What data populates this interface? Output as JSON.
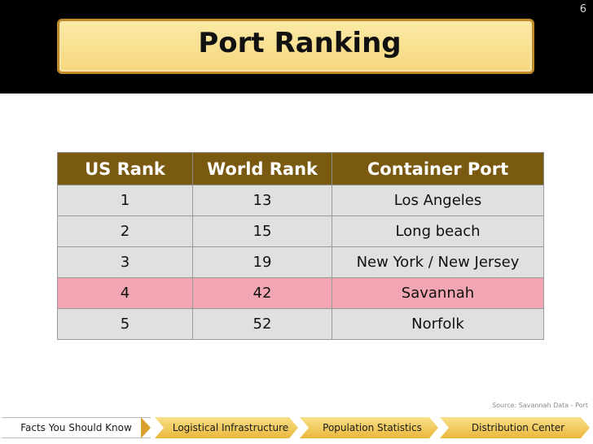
{
  "slide": {
    "number": "6",
    "title": "Port Ranking"
  },
  "table": {
    "headers": [
      "US Rank",
      "World Rank",
      "Container Port"
    ],
    "rows": [
      [
        "1",
        "13",
        "Los Angeles"
      ],
      [
        "2",
        "15",
        "Long beach"
      ],
      [
        "3",
        "19",
        "New York / New Jersey"
      ],
      [
        "4",
        "42",
        "Savannah"
      ],
      [
        "5",
        "52",
        "Norfolk"
      ]
    ],
    "highlight_color": "#f2a5b3",
    "header_color": "#7a5a10"
  },
  "source": "Source: Savannah Data - Port",
  "nav": {
    "items": [
      "Facts You Should Know",
      "Logistical Infrastructure",
      "Population Statistics",
      "Distribution Center"
    ]
  },
  "colors": {
    "title_bg": "#f6d77c",
    "title_border": "#c08a2a",
    "nav_gold": "#e9b83a"
  }
}
